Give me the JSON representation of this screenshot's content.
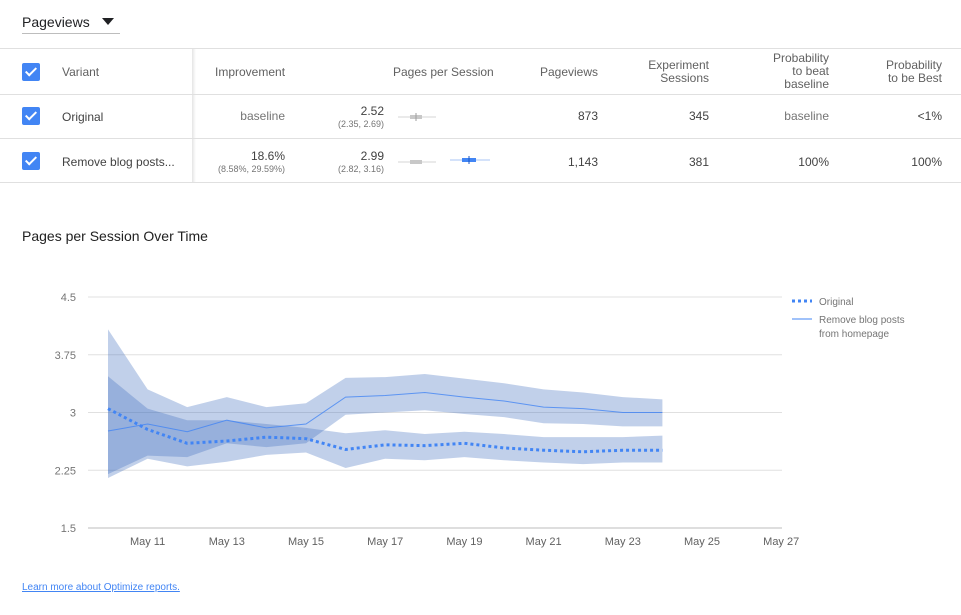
{
  "metric_selector": {
    "value": "Pageviews"
  },
  "table": {
    "headers": {
      "variant": "Variant",
      "improvement": "Improvement",
      "pages_per_session": "Pages per Session",
      "pageviews": "Pageviews",
      "experiment_sessions_line1": "Experiment",
      "experiment_sessions_line2": "Sessions",
      "prob_beat_line1": "Probability",
      "prob_beat_line2": "to beat",
      "prob_beat_line3": "baseline",
      "prob_best_line1": "Probability",
      "prob_best_line2": "to be Best"
    },
    "rows": [
      {
        "variant": "Original",
        "improvement": "baseline",
        "improvement_ci": "",
        "pps": "2.52",
        "pps_ci": "(2.35, 2.69)",
        "pageviews": "873",
        "sessions": "345",
        "prob_beat": "baseline",
        "prob_best": "<1%"
      },
      {
        "variant": "Remove blog posts...",
        "improvement": "18.6%",
        "improvement_ci": "(8.58%, 29.59%)",
        "pps": "2.99",
        "pps_ci": "(2.82, 3.16)",
        "pageviews": "1,143",
        "sessions": "381",
        "prob_beat": "100%",
        "prob_best": "100%"
      }
    ]
  },
  "chart": {
    "title": "Pages per Session Over Time",
    "link_text": "Learn more about Optimize reports."
  },
  "colors": {
    "accent": "#4285f4",
    "band": "#3f6ebd",
    "baseline_grey": "#bdbdbd"
  },
  "chart_data": {
    "type": "line",
    "title": "Pages per Session Over Time",
    "xlabel": "",
    "ylabel": "",
    "x_ticks": [
      "May 11",
      "May 13",
      "May 15",
      "May 17",
      "May 19",
      "May 21",
      "May 23",
      "May 25",
      "May 27"
    ],
    "y_ticks": [
      "4.5",
      "3.75",
      "3",
      "2.25",
      "1.5"
    ],
    "ylim": [
      1.5,
      4.5
    ],
    "xlim": [
      "May 10",
      "May 27"
    ],
    "legend": [
      "Original",
      "Remove blog posts from homepage"
    ],
    "legend_lines": [
      "Original",
      "Remove blog posts",
      "from homepage"
    ],
    "legend_position": "right",
    "grid": true,
    "x": [
      "May 10",
      "May 11",
      "May 12",
      "May 13",
      "May 14",
      "May 15",
      "May 16",
      "May 17",
      "May 18",
      "May 19",
      "May 20",
      "May 21",
      "May 22",
      "May 23",
      "May 24"
    ],
    "series": [
      {
        "name": "Original",
        "style": "dotted",
        "values": [
          3.05,
          2.78,
          2.6,
          2.63,
          2.68,
          2.66,
          2.52,
          2.58,
          2.57,
          2.6,
          2.54,
          2.51,
          2.49,
          2.51,
          2.51
        ],
        "upper": [
          3.47,
          3.05,
          2.9,
          2.9,
          2.85,
          2.8,
          2.73,
          2.77,
          2.72,
          2.75,
          2.72,
          2.68,
          2.68,
          2.68,
          2.7
        ],
        "lower": [
          2.15,
          2.4,
          2.3,
          2.36,
          2.45,
          2.48,
          2.28,
          2.4,
          2.38,
          2.42,
          2.38,
          2.35,
          2.33,
          2.35,
          2.35
        ]
      },
      {
        "name": "Remove blog posts from homepage",
        "style": "solid",
        "values": [
          2.76,
          2.85,
          2.75,
          2.9,
          2.8,
          2.85,
          3.2,
          3.22,
          3.26,
          3.2,
          3.15,
          3.07,
          3.05,
          3.0,
          3.0
        ],
        "upper": [
          4.08,
          3.3,
          3.07,
          3.2,
          3.07,
          3.12,
          3.45,
          3.46,
          3.5,
          3.44,
          3.38,
          3.3,
          3.26,
          3.2,
          3.17
        ],
        "lower": [
          2.2,
          2.44,
          2.42,
          2.6,
          2.55,
          2.6,
          2.97,
          3.0,
          3.03,
          2.98,
          2.94,
          2.86,
          2.85,
          2.82,
          2.82
        ]
      }
    ]
  }
}
